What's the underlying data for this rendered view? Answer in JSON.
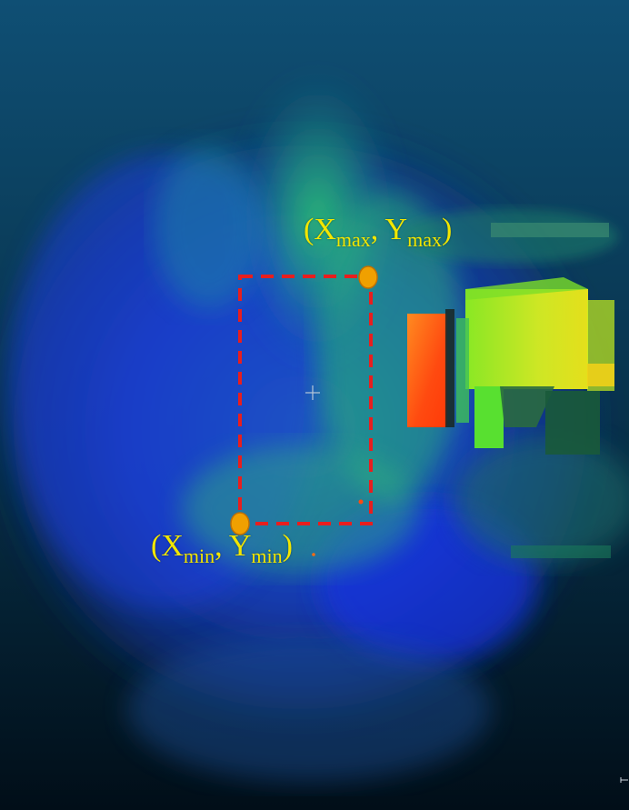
{
  "scene": {
    "colors": {
      "background_top": "#0d4a6e",
      "background_bottom": "#02121d",
      "cloud_blue": "#1a3fd6",
      "cloud_teal": "#1e8a9a",
      "cloud_green": "#3fe03a",
      "cloud_yellow": "#e8f020",
      "cloud_orange": "#ff7a1a",
      "cloud_red": "#ff3a10",
      "bbox_color": "#e81e1e",
      "point_color": "#f0a000",
      "label_color": "#f2e600"
    }
  },
  "labels": {
    "max": {
      "open": "(X",
      "sub1": "max",
      "sep": ", Y",
      "sub2": "max",
      "close": ")"
    },
    "min": {
      "open": "(X",
      "sub1": "min",
      "sep": ", Y",
      "sub2": "min",
      "close": ")"
    }
  }
}
